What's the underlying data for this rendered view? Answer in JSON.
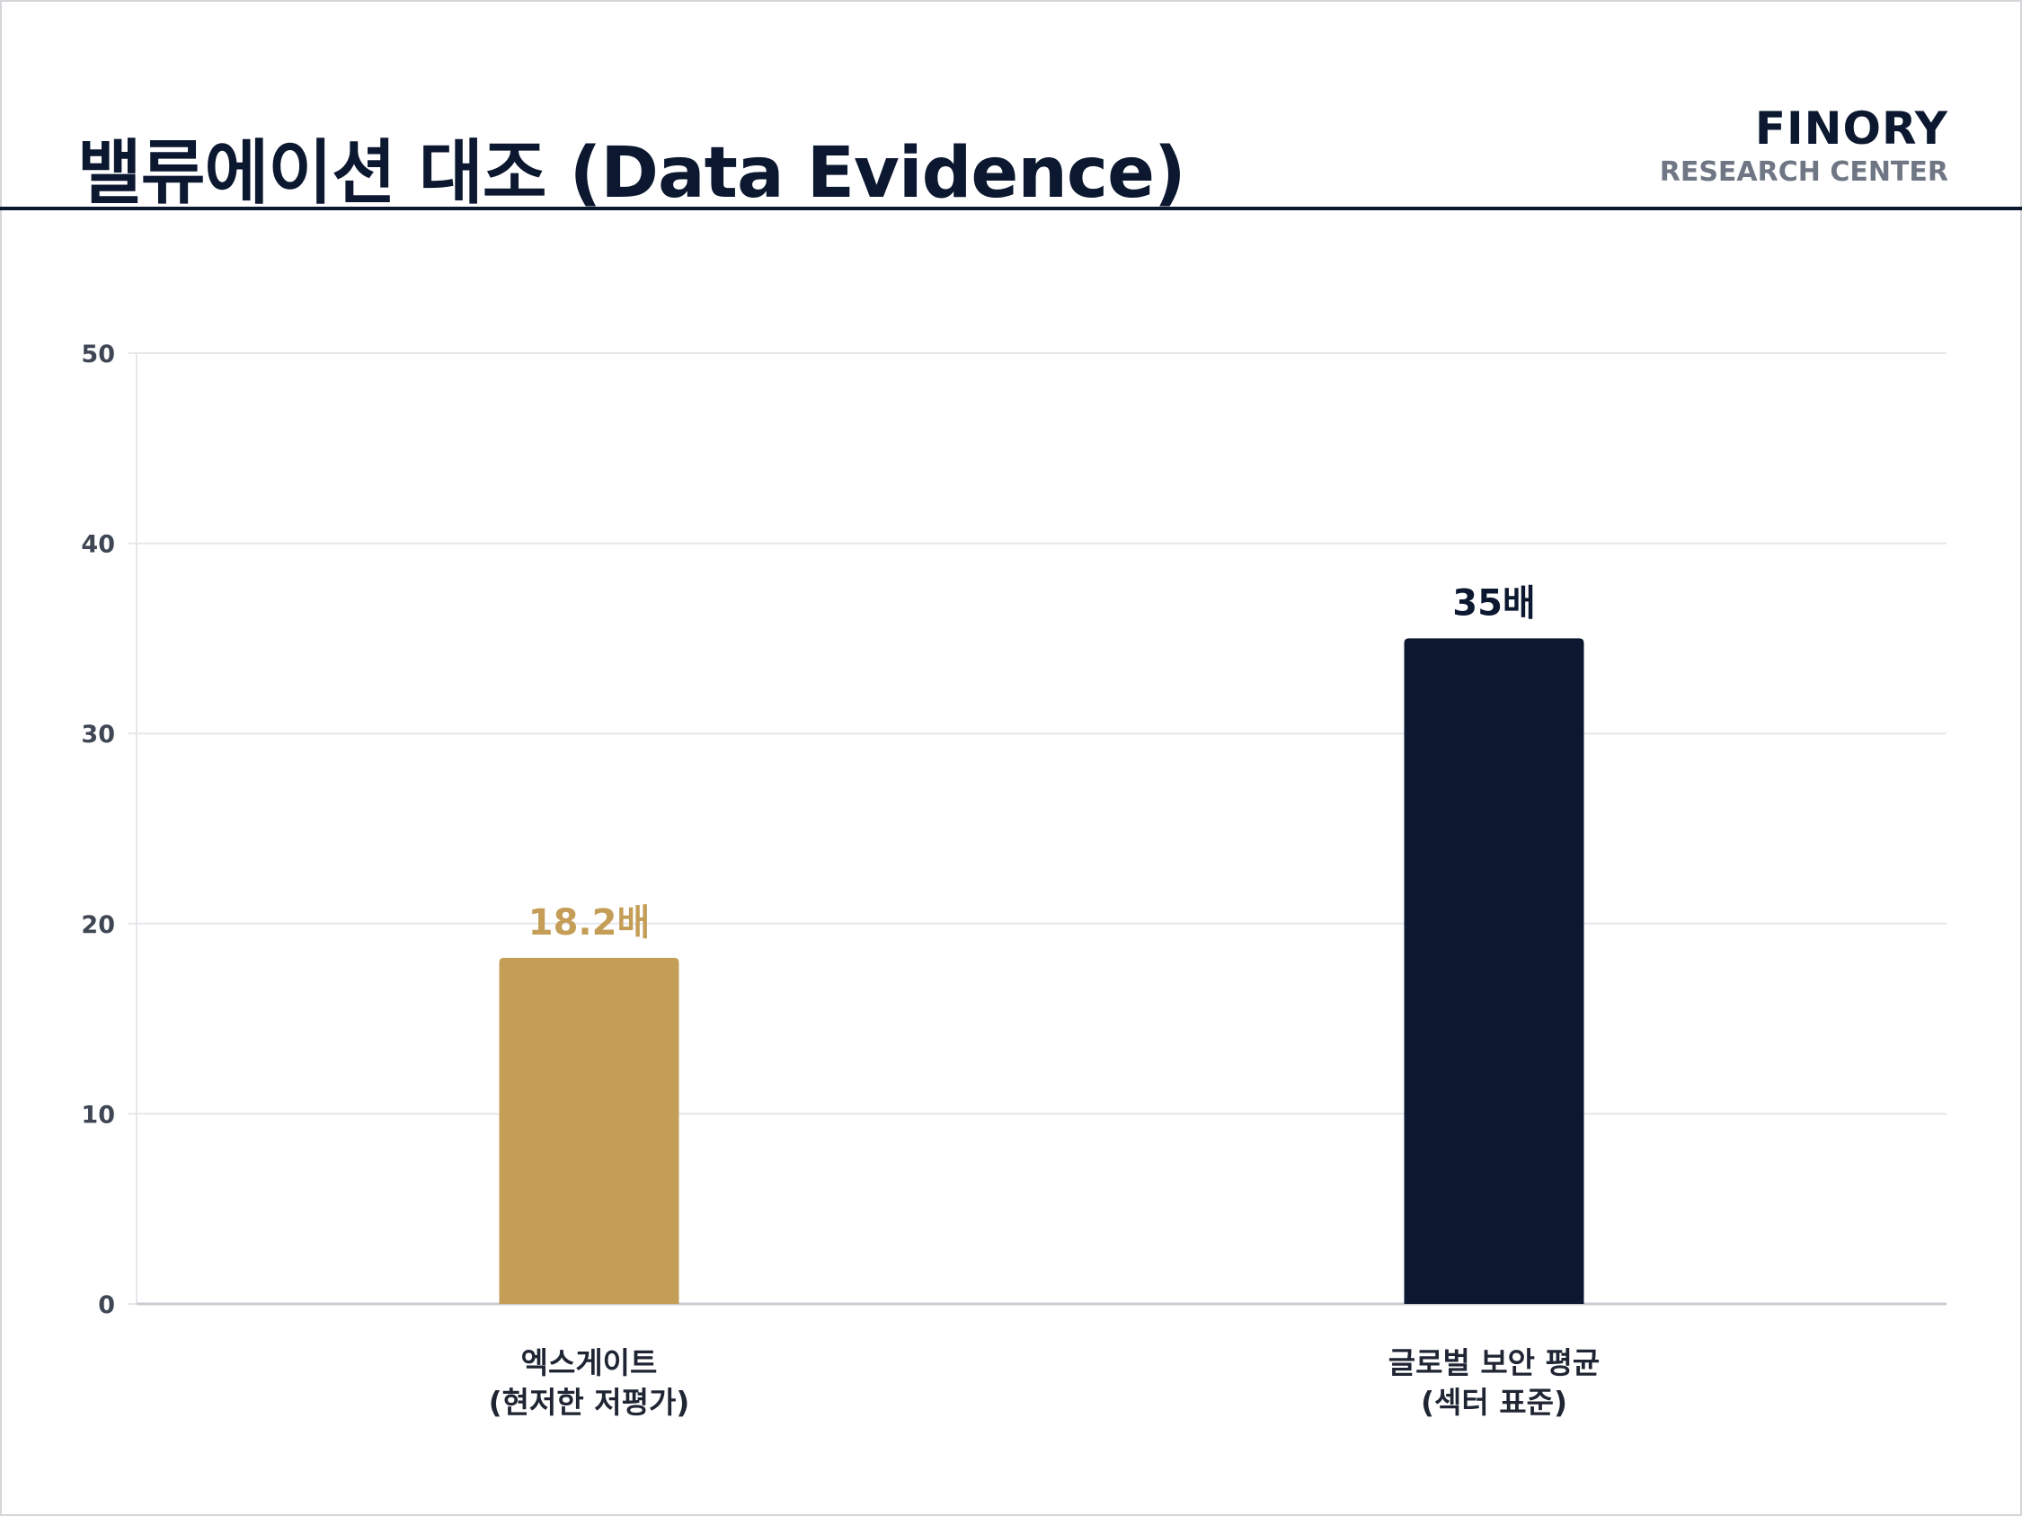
{
  "header": {
    "title": "밸류에이션 대조 (Data Evidence)",
    "brand_name": "FINORY",
    "brand_sub": "RESEARCH CENTER"
  },
  "colors": {
    "accent_gold": "#C49E57",
    "navy": "#0C1830",
    "grid": "#E6E7EA",
    "axis": "#C9CCD2"
  },
  "chart_data": {
    "type": "bar",
    "categories": [
      [
        "엑스게이트",
        "(현저한 저평가)"
      ],
      [
        "글로벌 보안 평균",
        "(섹터 표준)"
      ]
    ],
    "values": [
      18.2,
      35
    ],
    "data_labels": [
      "18.2배",
      "35배"
    ],
    "bar_colors": [
      "#C49E57",
      "#0C1830"
    ],
    "ylim": [
      0,
      50
    ],
    "yticks": [
      0,
      10,
      20,
      30,
      40,
      50
    ],
    "grid": true,
    "legend": "none"
  }
}
